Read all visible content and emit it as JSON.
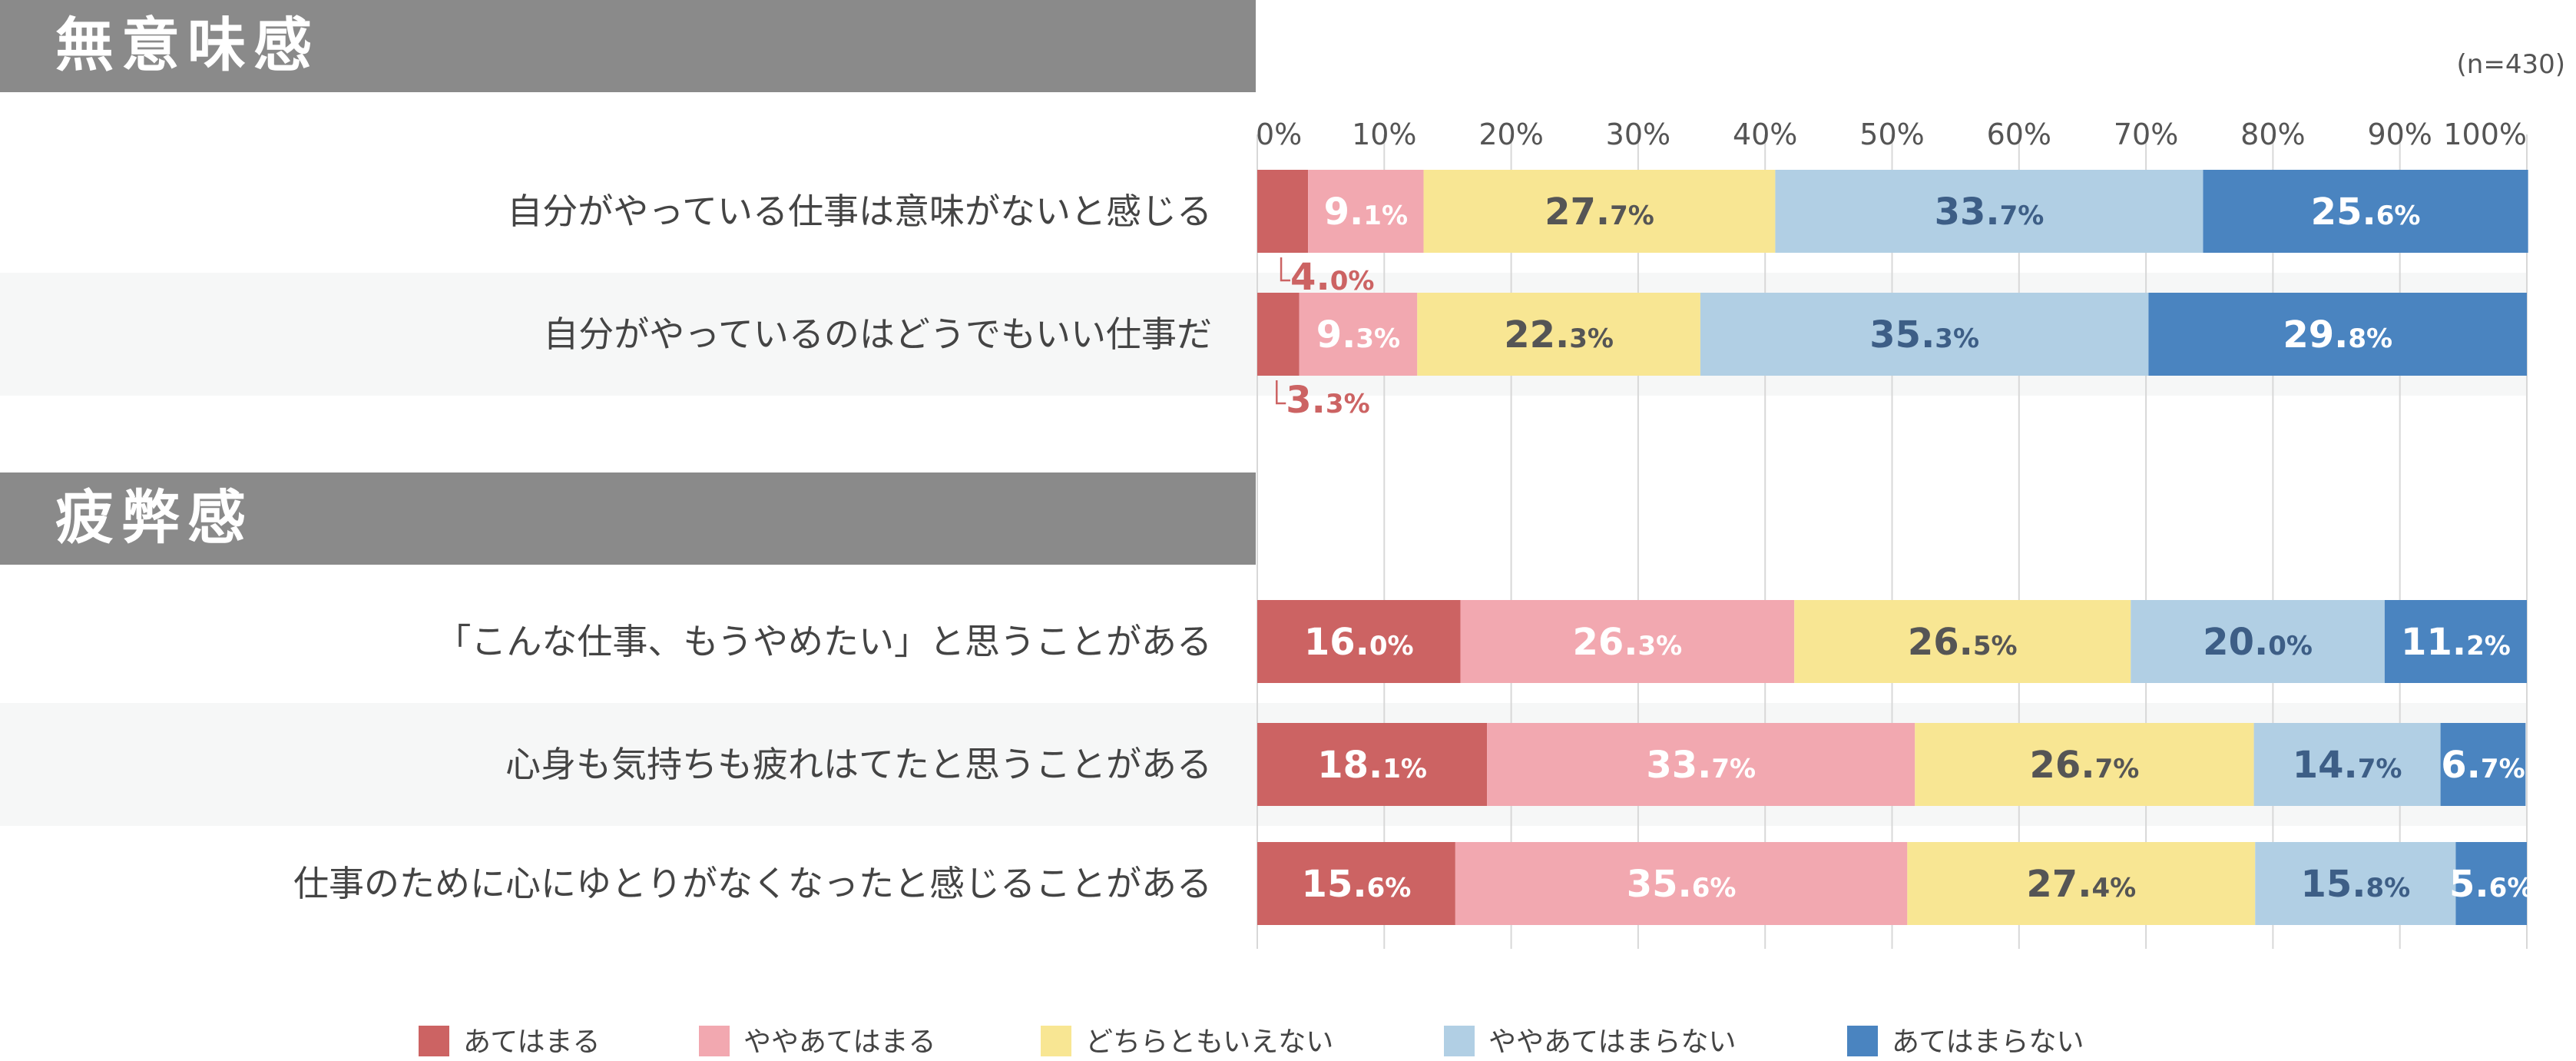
{
  "n_label": "(n=430)",
  "colors": {
    "atehamaru": "#cc6363",
    "yaya_atehamaru": "#f2a8b0",
    "dochiratomo": "#f8e693",
    "yaya_atehamaranai": "#b1cfe4",
    "atehamaranai": "#4a84c0"
  },
  "chart_data": {
    "type": "bar",
    "orientation": "horizontal",
    "stacked": true,
    "xlim": [
      0,
      100
    ],
    "x_ticks": [
      "0%",
      "10%",
      "20%",
      "30%",
      "40%",
      "50%",
      "60%",
      "70%",
      "80%",
      "90%",
      "100%"
    ],
    "grid": true,
    "legend_position": "bottom",
    "series_names": [
      "あてはまる",
      "ややあてはまる",
      "どちらともいえない",
      "ややあてはまらない",
      "あてはまらない"
    ],
    "sections": [
      {
        "title": "無意味感",
        "rows": [
          {
            "label": "自分がやっている仕事は意味がないと感じる",
            "values": [
              4.0,
              9.1,
              27.7,
              33.7,
              25.6
            ]
          },
          {
            "label": "自分がやっているのはどうでもいい仕事だ",
            "values": [
              3.3,
              9.3,
              22.3,
              35.3,
              29.8
            ]
          }
        ]
      },
      {
        "title": "疲弊感",
        "rows": [
          {
            "label": "「こんな仕事、もうやめたい」と思うことがある",
            "values": [
              16.0,
              26.3,
              26.5,
              20.0,
              11.2
            ]
          },
          {
            "label": "心身も気持ちも疲れはてたと思うことがある",
            "values": [
              18.1,
              33.7,
              26.7,
              14.7,
              6.7
            ]
          },
          {
            "label": "仕事のために心にゆとりがなくなったと感じることがある",
            "values": [
              15.6,
              35.6,
              27.4,
              15.8,
              5.6
            ]
          }
        ]
      }
    ]
  }
}
